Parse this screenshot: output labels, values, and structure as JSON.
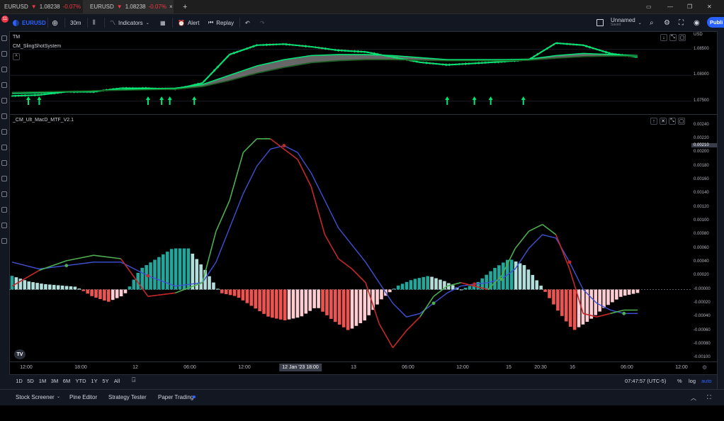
{
  "browser_tabs": [
    {
      "symbol": "EURUSD",
      "price": "1.08238",
      "change": "-0.07%",
      "close": "×"
    },
    {
      "symbol": "EURUSD",
      "price": "1.08238",
      "change": "-0.07%",
      "close": "×"
    }
  ],
  "new_tab": "+",
  "toolbar": {
    "symbol": "EURUSD",
    "interval": "30m",
    "indicators": "Indicators",
    "alert": "Alert",
    "replay": "Replay",
    "layout_name": "Unnamed",
    "layout_status": "Saved",
    "publish": "Publi",
    "notification_count": "11"
  },
  "pane1": {
    "legend_main": "TM",
    "legend_indicator": "CM_SlingShotSystem",
    "collapse": "^",
    "currency": "USD",
    "price_ticks": [
      "1.08500",
      "1.08000",
      "1.07500"
    ]
  },
  "pane2": {
    "legend": "_CM_Ult_MacD_MTF_V2.1",
    "price_ticks": [
      "0.00240",
      "0.00220",
      "0.00200",
      "0.00180",
      "0.00160",
      "0.00140",
      "0.00120",
      "0.00100",
      "0.00080",
      "0.00060",
      "0.00040",
      "0.00020",
      "0.00000",
      "-0.00020",
      "-0.00040",
      "-0.00060",
      "-0.00080",
      "-0.00100"
    ],
    "current_value": "0.00210",
    "zero_label": "-0.00000"
  },
  "time_axis": {
    "ticks": [
      "12:00",
      "18:00",
      "12",
      "06:00",
      "12:00",
      "13",
      "06:00",
      "12:00",
      "15",
      "20:30",
      "16",
      "06:00",
      "12:00"
    ],
    "crosshair_label": "12 Jan '23   18:00"
  },
  "range_bar": {
    "ranges": [
      "1D",
      "5D",
      "1M",
      "3M",
      "6M",
      "YTD",
      "1Y",
      "5Y",
      "All"
    ],
    "clock": "07:47:57 (UTC-5)",
    "percent": "%",
    "log": "log",
    "auto": "auto"
  },
  "bottom_tabs": [
    "Stock Screener",
    "Pine Editor",
    "Strategy Tester",
    "Paper Trading"
  ],
  "colors": {
    "accent": "#2962ff",
    "bull_candle": "#4caf50",
    "bear_candle": "#b22833",
    "ema_fast": "#00e676",
    "macd_line": "#4caf50",
    "signal_line": "#3f51d6",
    "macd_line_bear": "#c62828",
    "hist_pos_strong": "#26a69a",
    "hist_pos_weak": "#b2dfdb",
    "hist_neg_strong": "#ef5350",
    "hist_neg_weak": "#ffcdd2"
  },
  "chart_data": [
    {
      "type": "line",
      "name": "CM_SlingShotSystem",
      "ylim": [
        1.0725,
        1.0885
      ],
      "x_index": [
        0,
        10,
        20,
        30,
        40,
        50,
        60,
        70,
        80,
        90,
        100,
        110,
        120,
        130,
        140,
        150,
        160,
        170,
        180,
        190,
        200,
        210,
        220,
        230
      ],
      "series": [
        {
          "values": [
            1.076,
            1.0762,
            1.0768,
            1.0768,
            1.0775,
            1.0775,
            1.0773,
            1.0785,
            1.084,
            1.0858,
            1.086,
            1.0855,
            1.0848,
            1.0845,
            1.0835,
            1.0825,
            1.082,
            1.0823,
            1.0826,
            1.083,
            1.0862,
            1.0858,
            1.0842,
            1.0835
          ]
        },
        {
          "values": [
            1.0765,
            1.0766,
            1.0768,
            1.077,
            1.0772,
            1.0774,
            1.0775,
            1.0782,
            1.08,
            1.0818,
            1.083,
            1.0838,
            1.084,
            1.084,
            1.0838,
            1.0834,
            1.083,
            1.083,
            1.083,
            1.0831,
            1.0838,
            1.0842,
            1.084,
            1.0838
          ]
        },
        {
          "values": [
            1.0767,
            1.0768,
            1.0769,
            1.077,
            1.0771,
            1.0772,
            1.0773,
            1.0778,
            1.079,
            1.0804,
            1.0815,
            1.0824,
            1.0828,
            1.083,
            1.083,
            1.0829,
            1.0828,
            1.0828,
            1.0828,
            1.0829,
            1.0833,
            1.0836,
            1.0837,
            1.0837
          ]
        }
      ]
    },
    {
      "type": "line",
      "name": "_CM_Ult_MacD_MTF_V2.1",
      "ylim": [
        -0.00105,
        0.00255
      ],
      "x_index": [
        0,
        10,
        20,
        30,
        40,
        50,
        60,
        70,
        75,
        80,
        85,
        90,
        95,
        100,
        105,
        110,
        115,
        120,
        125,
        130,
        135,
        140,
        145,
        150,
        155,
        160,
        165,
        170,
        175,
        180,
        185,
        190,
        195,
        200,
        205,
        210,
        215,
        220,
        225,
        230
      ],
      "series": [
        {
          "values": [
            5e-05,
            0.00028,
            0.00042,
            0.0005,
            0.00045,
            -0.0001,
            -5e-05,
            0.0001,
            0.00085,
            0.0013,
            0.002,
            0.0022,
            0.0022,
            0.00205,
            0.0019,
            0.0015,
            0.0008,
            0.00045,
            0.0003,
            0.0001,
            -0.0005,
            -0.00085,
            -0.0006,
            -0.0004,
            -0.0001,
            5e-05,
            0.0001,
            5e-05,
            0.0,
            0.0002,
            0.0006,
            0.00085,
            0.00095,
            0.0008,
            0.0003,
            -0.00035,
            -0.0004,
            -0.00035,
            -0.0003,
            -0.0003
          ]
        },
        {
          "values": [
            0.0004,
            0.0003,
            0.00035,
            0.0004,
            0.0004,
            0.0002,
            5e-05,
            0.0001,
            0.0004,
            0.0009,
            0.0014,
            0.0018,
            0.00205,
            0.0021,
            0.002,
            0.0017,
            0.0013,
            0.0009,
            0.00065,
            0.0004,
            0.0001,
            -0.0002,
            -0.0004,
            -0.00035,
            -0.0002,
            -5e-05,
            5e-05,
            8e-05,
            0.0001,
            0.00015,
            0.0003,
            0.0006,
            0.0008,
            0.00075,
            0.0004,
            0.0,
            -0.0002,
            -0.0003,
            -0.00035,
            -0.00035
          ]
        }
      ],
      "histogram": [
        0.0002,
        0.00012,
        8e-05,
        6e-05,
        4e-05,
        -0.0001,
        -0.00018,
        -8e-05,
        0.0003,
        0.00045,
        0.0006,
        0.0006,
        0.0003,
        -5e-05,
        -0.0001,
        -0.00025,
        -0.0004,
        -0.00045,
        -0.0004,
        -0.00025,
        -0.00045,
        -0.0006,
        -0.00045,
        -0.00015,
        5e-05,
        0.00015,
        0.0002,
        0.00012,
        0.0,
        0.0001,
        0.0003,
        0.00045,
        0.00035,
        5e-05,
        -0.0003,
        -0.0006,
        -0.00045,
        -0.00025,
        -0.0001,
        -5e-05
      ]
    }
  ]
}
